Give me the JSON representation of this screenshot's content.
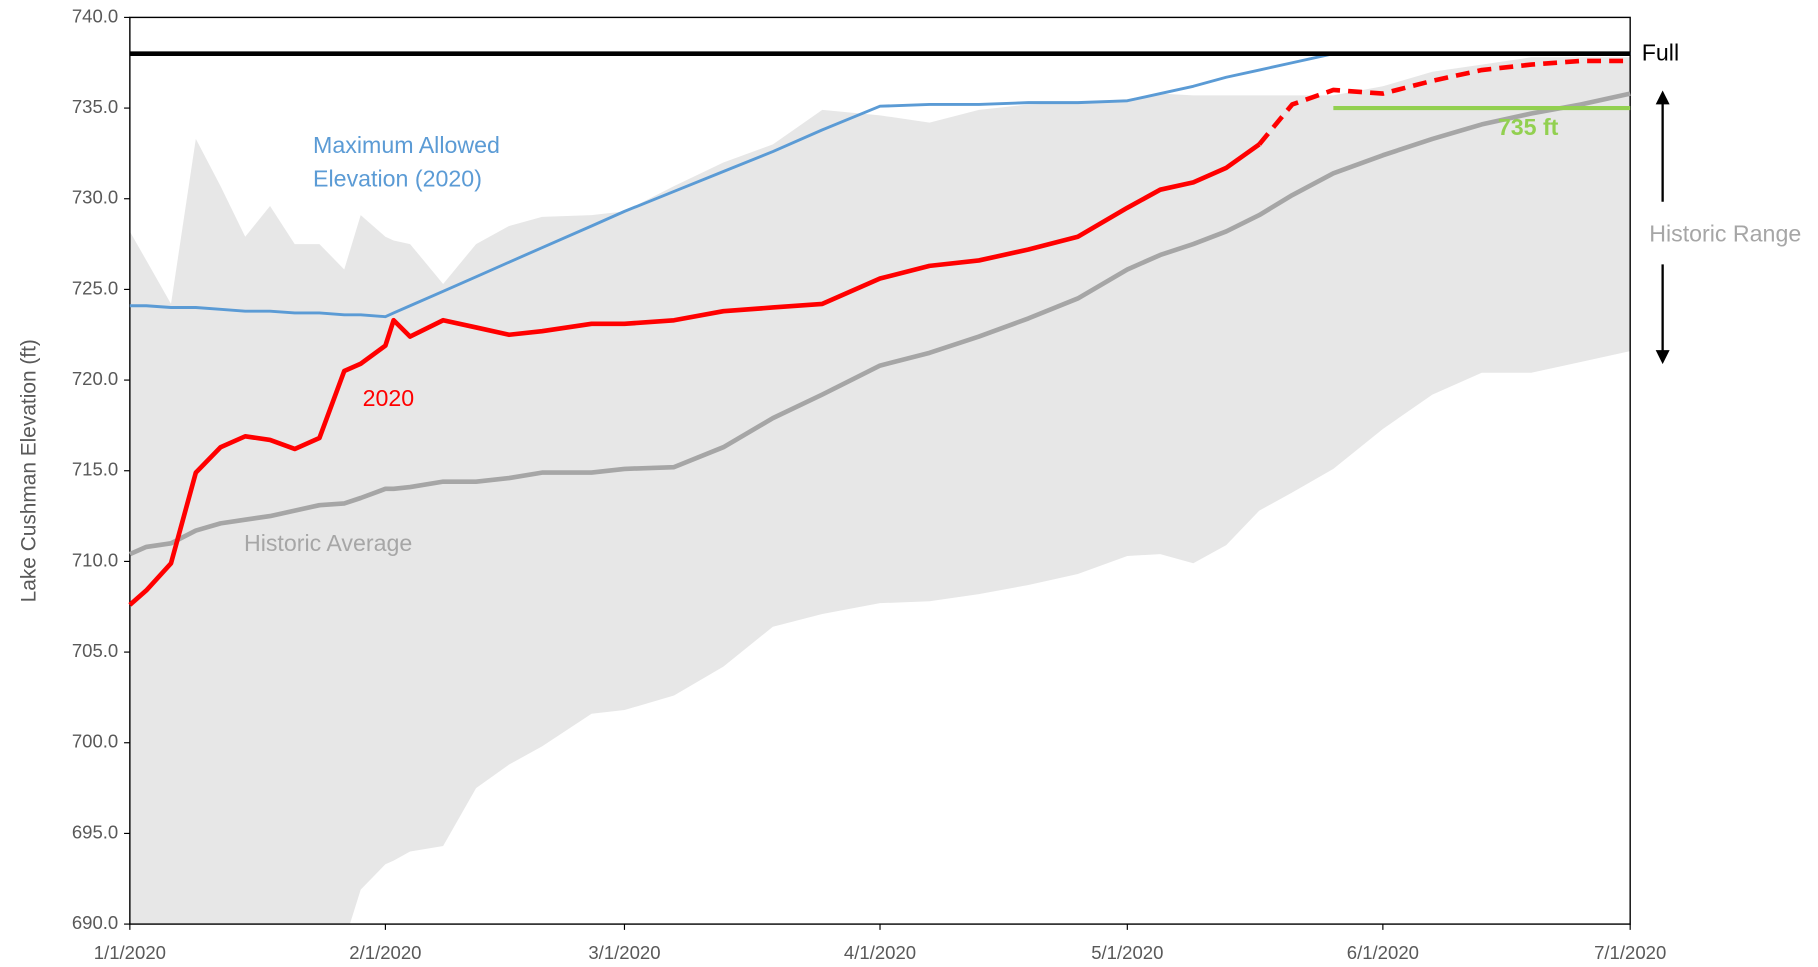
{
  "chart_data": {
    "type": "line",
    "y_label": "Lake Cushman Elevation (ft)",
    "x": [
      "1/1/2020",
      "1/3/2020",
      "1/6/2020",
      "1/9/2020",
      "1/12/2020",
      "1/15/2020",
      "1/18/2020",
      "1/21/2020",
      "1/24/2020",
      "1/27/2020",
      "1/29/2020",
      "2/1/2020",
      "2/2/2020",
      "2/4/2020",
      "2/8/2020",
      "2/12/2020",
      "2/16/2020",
      "2/20/2020",
      "2/26/2020",
      "3/1/2020",
      "3/7/2020",
      "3/13/2020",
      "3/19/2020",
      "3/25/2020",
      "4/1/2020",
      "4/7/2020",
      "4/13/2020",
      "4/19/2020",
      "4/25/2020",
      "5/1/2020",
      "5/5/2020",
      "5/9/2020",
      "5/13/2020",
      "5/17/2020",
      "5/21/2020",
      "5/26/2020",
      "6/1/2020",
      "6/7/2020",
      "6/13/2020",
      "6/19/2020",
      "6/25/2020",
      "7/1/2020"
    ],
    "xlim": [
      "1/1/2020",
      "7/1/2020"
    ],
    "xticks": [
      "1/1/2020",
      "2/1/2020",
      "3/1/2020",
      "4/1/2020",
      "5/1/2020",
      "6/1/2020",
      "7/1/2020"
    ],
    "ylim": [
      690,
      740
    ],
    "yticks": [
      {
        "value": 690,
        "label": "690.0"
      },
      {
        "value": 695,
        "label": "695.0"
      },
      {
        "value": 700,
        "label": "700.0"
      },
      {
        "value": 705,
        "label": "705.0"
      },
      {
        "value": 710,
        "label": "710.0"
      },
      {
        "value": 715,
        "label": "715.0"
      },
      {
        "value": 720,
        "label": "720.0"
      },
      {
        "value": 725,
        "label": "725.0"
      },
      {
        "value": 730,
        "label": "730.0"
      },
      {
        "value": 735,
        "label": "735.0"
      },
      {
        "value": 740,
        "label": "740.0"
      }
    ],
    "series": [
      {
        "name": "Historic Range",
        "type": "area",
        "color": "#e7e7e7",
        "low": [
          685,
          685,
          685,
          685,
          685,
          685,
          685,
          685,
          685,
          689.0,
          691.9,
          693.3,
          693.5,
          694.0,
          694.3,
          697.5,
          698.8,
          699.8,
          701.6,
          701.8,
          702.6,
          704.2,
          706.4,
          707.1,
          707.7,
          707.8,
          708.2,
          708.7,
          709.3,
          710.3,
          710.4,
          709.9,
          710.9,
          712.8,
          713.8,
          715.1,
          717.3,
          719.2,
          720.4,
          720.4,
          721.0,
          721.6
        ],
        "high": [
          728.2,
          726.6,
          724.2,
          733.3,
          730.7,
          727.9,
          729.6,
          727.5,
          727.5,
          726.1,
          729.1,
          727.9,
          727.7,
          727.5,
          725.3,
          727.5,
          728.5,
          729.0,
          729.1,
          729.3,
          730.7,
          732.0,
          733.0,
          734.9,
          734.6,
          734.2,
          734.9,
          735.2,
          735.3,
          735.5,
          735.8,
          735.7,
          735.7,
          735.7,
          735.7,
          735.7,
          736.2,
          737.0,
          737.4,
          737.8,
          737.8,
          737.8
        ]
      },
      {
        "name": "Historic Average",
        "color": "#a6a6a6",
        "values": [
          710.4,
          710.8,
          711.0,
          711.7,
          712.1,
          712.3,
          712.5,
          712.8,
          713.1,
          713.2,
          713.5,
          714.0,
          714.0,
          714.1,
          714.4,
          714.4,
          714.6,
          714.9,
          714.9,
          715.1,
          715.2,
          716.3,
          717.9,
          719.2,
          720.8,
          721.5,
          722.4,
          723.4,
          724.5,
          726.1,
          726.9,
          727.5,
          728.2,
          729.1,
          730.2,
          731.4,
          732.4,
          733.3,
          734.1,
          734.7,
          735.2,
          735.8
        ]
      },
      {
        "name": "Maximum Allowed Elevation (2020)",
        "color": "#5b9bd5",
        "values": [
          724.1,
          724.1,
          724.0,
          724.0,
          723.9,
          723.8,
          723.8,
          723.7,
          723.7,
          723.6,
          723.6,
          723.5,
          723.7,
          724.1,
          724.9,
          725.7,
          726.5,
          727.3,
          728.5,
          729.3,
          730.4,
          731.5,
          732.6,
          733.8,
          735.1,
          735.2,
          735.2,
          735.3,
          735.3,
          735.4,
          735.8,
          736.2,
          736.7,
          737.1,
          737.5,
          738.0,
          738.0,
          738.0,
          738.0,
          738.0,
          738.0,
          738.0
        ]
      },
      {
        "name": "Full",
        "color": "#000000",
        "values": [
          738,
          738,
          738,
          738,
          738,
          738,
          738,
          738,
          738,
          738,
          738,
          738,
          738,
          738,
          738,
          738,
          738,
          738,
          738,
          738,
          738,
          738,
          738,
          738,
          738,
          738,
          738,
          738,
          738,
          738,
          738,
          738,
          738,
          738,
          738,
          738,
          738,
          738,
          738,
          738,
          738,
          738
        ]
      },
      {
        "name": "2020",
        "color": "#ff0000",
        "values": [
          707.6,
          708.4,
          709.9,
          714.9,
          716.3,
          716.9,
          716.7,
          716.2,
          716.8,
          720.5,
          720.9,
          721.9,
          723.3,
          722.4,
          723.3,
          722.9,
          722.5,
          722.7,
          723.1,
          723.1,
          723.3,
          723.8,
          724.0,
          724.2,
          725.6,
          726.3,
          726.6,
          727.2,
          727.9,
          729.5,
          730.5,
          730.9,
          731.7,
          733.0,
          null,
          null,
          null,
          null,
          null,
          null,
          null,
          null
        ]
      },
      {
        "color": "#ff0000",
        "dashed": true,
        "values": [
          null,
          null,
          null,
          null,
          null,
          null,
          null,
          null,
          null,
          null,
          null,
          null,
          null,
          null,
          null,
          null,
          null,
          null,
          null,
          null,
          null,
          null,
          null,
          null,
          null,
          null,
          null,
          null,
          null,
          null,
          null,
          null,
          null,
          733.0,
          735.2,
          736.0,
          735.8,
          736.5,
          737.1,
          737.4,
          737.6,
          737.6
        ]
      },
      {
        "name": "735 ft",
        "color": "#92d050",
        "values": [
          null,
          null,
          null,
          null,
          null,
          null,
          null,
          null,
          null,
          null,
          null,
          null,
          null,
          null,
          null,
          null,
          null,
          null,
          null,
          null,
          null,
          null,
          null,
          null,
          null,
          null,
          null,
          null,
          null,
          null,
          null,
          null,
          null,
          null,
          null,
          735,
          735,
          735,
          735,
          735,
          735,
          735
        ]
      }
    ]
  }
}
